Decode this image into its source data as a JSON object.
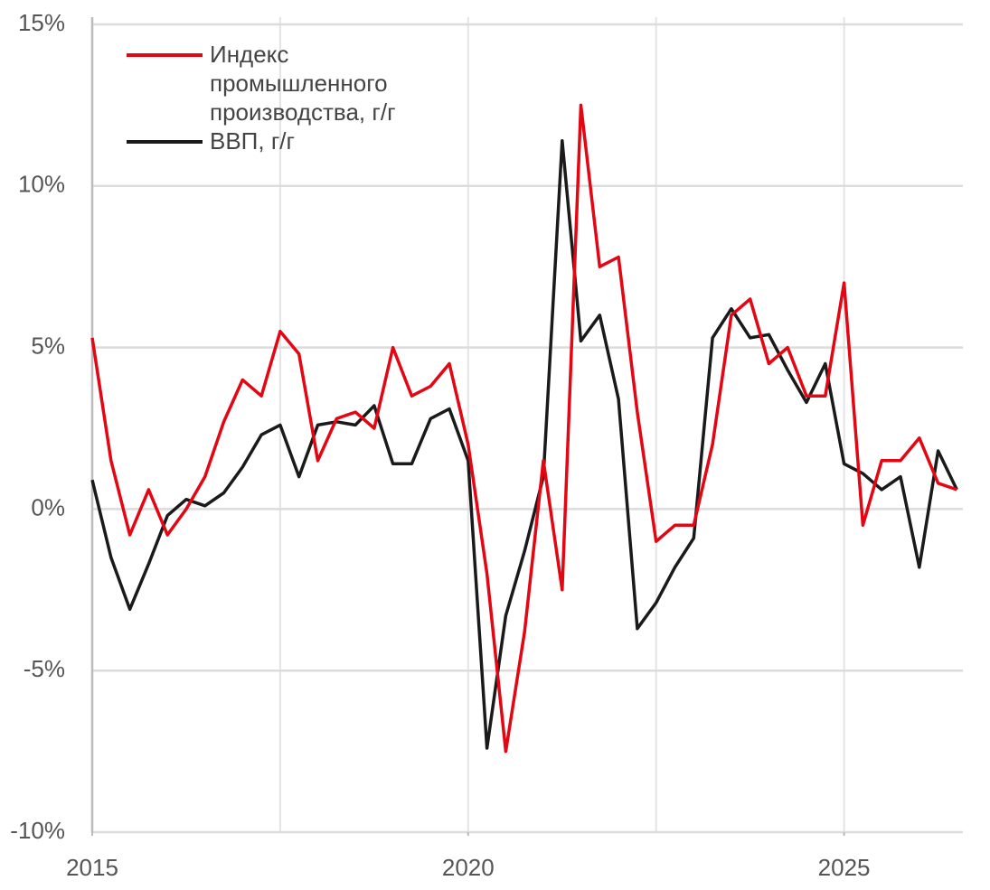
{
  "chart_data": {
    "type": "line",
    "x": [
      2015,
      2015.25,
      2015.5,
      2015.75,
      2016,
      2016.25,
      2016.5,
      2016.75,
      2017,
      2017.25,
      2017.5,
      2017.75,
      2018,
      2018.25,
      2018.5,
      2018.75,
      2019,
      2019.25,
      2019.5,
      2019.75,
      2020,
      2020.25,
      2020.5,
      2020.75,
      2021,
      2021.25,
      2021.5,
      2021.75,
      2022,
      2022.25,
      2022.5,
      2022.75,
      2023,
      2023.25,
      2023.5,
      2023.75,
      2024,
      2024.25,
      2024.5,
      2024.75,
      2025,
      2025.25,
      2025.5,
      2025.75,
      2026,
      2026.25,
      2026.5
    ],
    "series": [
      {
        "name": "Индекс промышленного производства, г/г",
        "color": "#e30613",
        "values": [
          5.3,
          1.5,
          -0.8,
          0.6,
          -0.8,
          0.0,
          1.0,
          2.7,
          4.0,
          3.5,
          5.5,
          4.8,
          1.5,
          2.8,
          3.0,
          2.5,
          5.0,
          3.5,
          3.8,
          4.5,
          2.0,
          -2.0,
          -7.5,
          -3.8,
          1.5,
          -2.5,
          12.5,
          7.5,
          7.8,
          3.0,
          -1.0,
          -0.5,
          -0.5,
          2.0,
          6.0,
          6.5,
          4.5,
          5.0,
          3.5,
          3.5,
          7.0,
          -0.5,
          1.5,
          1.5,
          2.2,
          0.8,
          0.6
        ]
      },
      {
        "name": "ВВП, г/г",
        "color": "#1a1a1a",
        "values": [
          0.9,
          -1.5,
          -3.1,
          -1.7,
          -0.2,
          0.3,
          0.1,
          0.5,
          1.3,
          2.3,
          2.6,
          1.0,
          2.6,
          2.7,
          2.6,
          3.2,
          1.4,
          1.4,
          2.8,
          3.1,
          1.5,
          -7.4,
          -3.3,
          -1.3,
          1.0,
          11.4,
          5.2,
          6.0,
          3.4,
          -3.7,
          -2.9,
          -1.8,
          -0.9,
          5.3,
          6.2,
          5.3,
          5.4,
          4.3,
          3.3,
          4.5,
          1.4,
          1.1,
          0.6,
          1.0,
          -1.8,
          1.8,
          0.6
        ]
      }
    ],
    "xlim": [
      2015,
      2026.58
    ],
    "xticks": [
      2015,
      2020,
      2025
    ],
    "xgrid": [
      2015,
      2017.5,
      2020,
      2022.5,
      2025
    ],
    "ylim": [
      -10,
      15
    ],
    "yticks": [
      {
        "value": -10,
        "label": "-10%"
      },
      {
        "value": -5,
        "label": "-5%"
      },
      {
        "value": 0,
        "label": "0%"
      },
      {
        "value": 5,
        "label": "5%"
      },
      {
        "value": 10,
        "label": "10%"
      },
      {
        "value": 15,
        "label": "15%"
      }
    ],
    "grid": true,
    "legend": "upper left"
  }
}
